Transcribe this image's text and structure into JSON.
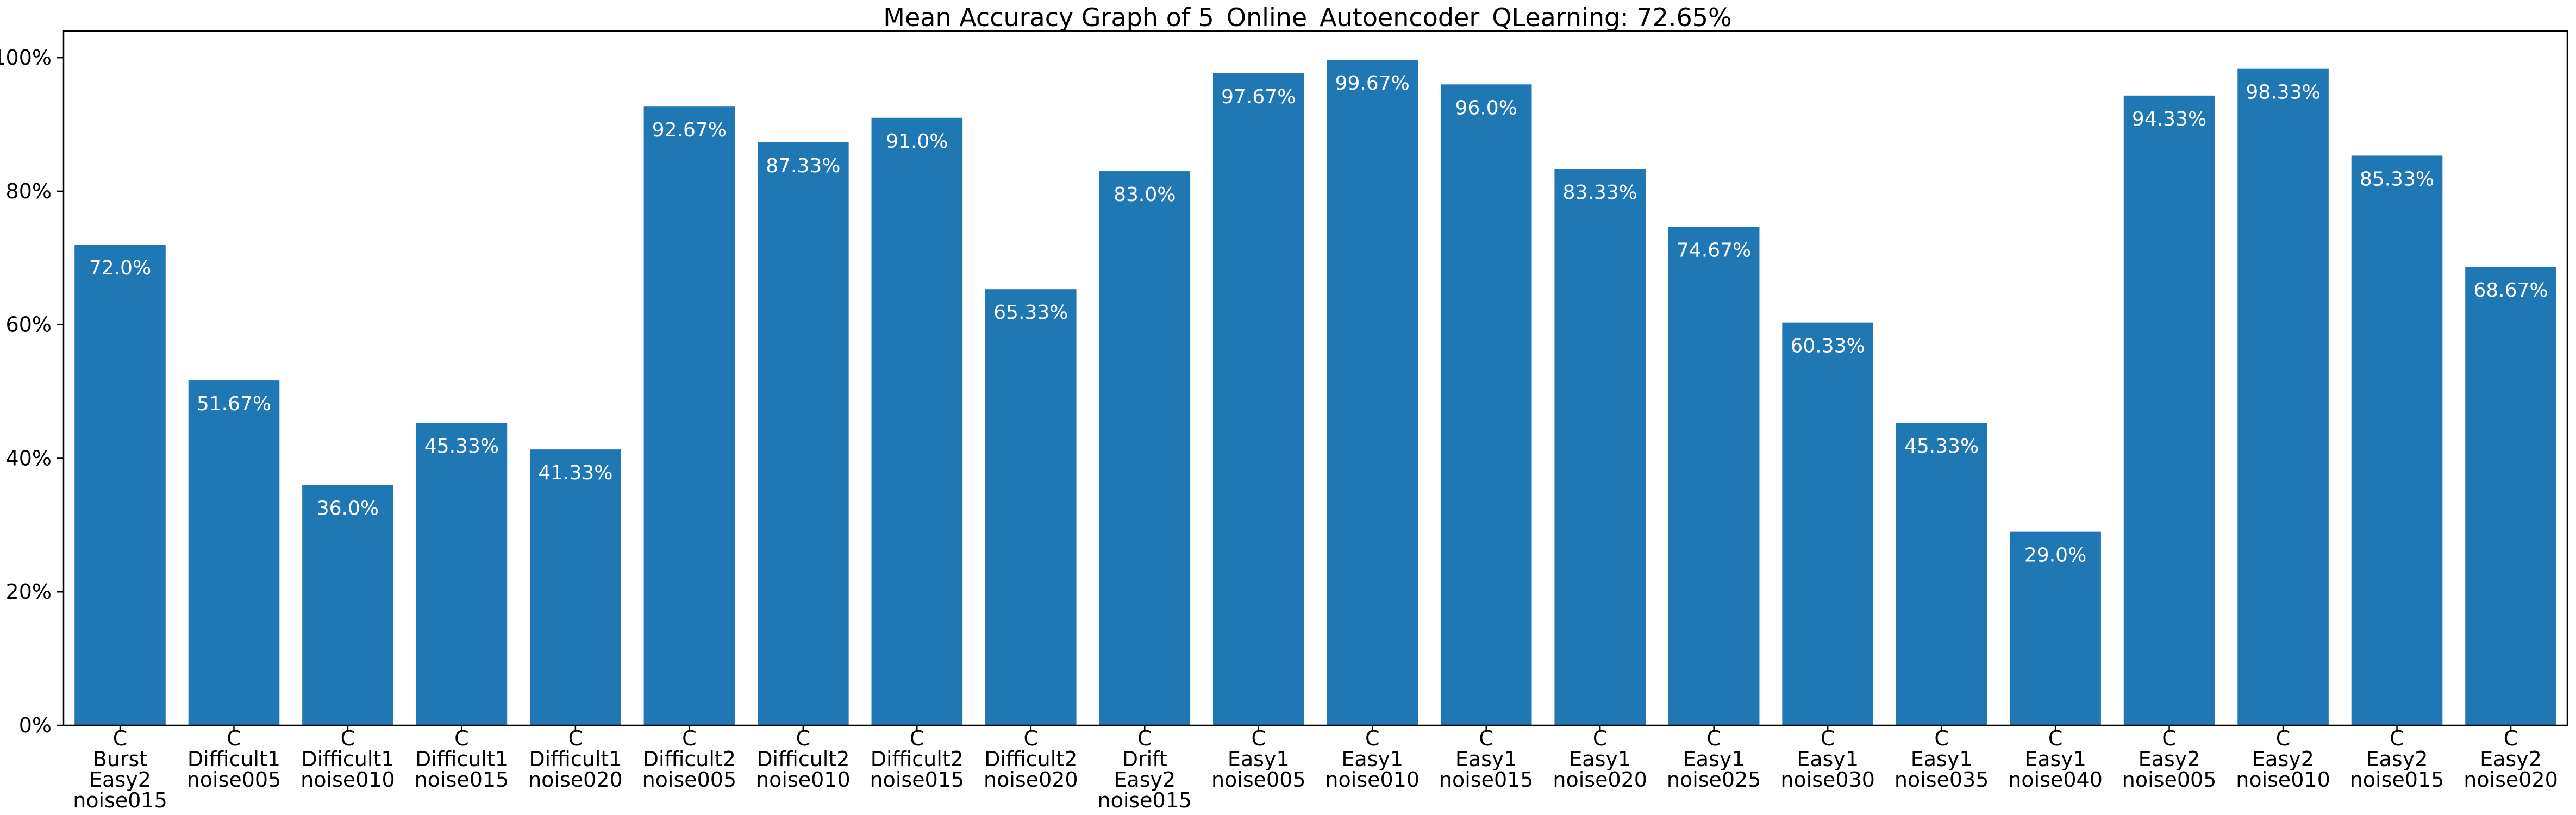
{
  "chart_data": {
    "type": "bar",
    "title": "Mean Accuracy Graph of 5_Online_Autoencoder_QLearning: 72.65%",
    "xlabel": "",
    "ylabel": "",
    "ylim": [
      0,
      104
    ],
    "y_ticks": [
      0,
      20,
      40,
      60,
      80,
      100
    ],
    "y_tick_labels": [
      "0%",
      "20%",
      "40%",
      "60%",
      "80%",
      "100%"
    ],
    "grid": false,
    "legend": "none",
    "bar_color": "#1f77b4",
    "label_color": "#ffffff",
    "categories": [
      [
        "C",
        "Burst",
        "Easy2",
        "noise015"
      ],
      [
        "C",
        "Difficult1",
        "noise005"
      ],
      [
        "C",
        "Difficult1",
        "noise010"
      ],
      [
        "C",
        "Difficult1",
        "noise015"
      ],
      [
        "C",
        "Difficult1",
        "noise020"
      ],
      [
        "C",
        "Difficult2",
        "noise005"
      ],
      [
        "C",
        "Difficult2",
        "noise010"
      ],
      [
        "C",
        "Difficult2",
        "noise015"
      ],
      [
        "C",
        "Difficult2",
        "noise020"
      ],
      [
        "C",
        "Drift",
        "Easy2",
        "noise015"
      ],
      [
        "C",
        "Easy1",
        "noise005"
      ],
      [
        "C",
        "Easy1",
        "noise010"
      ],
      [
        "C",
        "Easy1",
        "noise015"
      ],
      [
        "C",
        "Easy1",
        "noise020"
      ],
      [
        "C",
        "Easy1",
        "noise025"
      ],
      [
        "C",
        "Easy1",
        "noise030"
      ],
      [
        "C",
        "Easy1",
        "noise035"
      ],
      [
        "C",
        "Easy1",
        "noise040"
      ],
      [
        "C",
        "Easy2",
        "noise005"
      ],
      [
        "C",
        "Easy2",
        "noise010"
      ],
      [
        "C",
        "Easy2",
        "noise015"
      ],
      [
        "C",
        "Easy2",
        "noise020"
      ]
    ],
    "values": [
      72.0,
      51.67,
      36.0,
      45.33,
      41.33,
      92.67,
      87.33,
      91.0,
      65.33,
      83.0,
      97.67,
      99.67,
      96.0,
      83.33,
      74.67,
      60.33,
      45.33,
      29.0,
      94.33,
      98.33,
      85.33,
      68.67
    ],
    "data_labels": [
      "72.0%",
      "51.67%",
      "36.0%",
      "45.33%",
      "41.33%",
      "92.67%",
      "87.33%",
      "91.0%",
      "65.33%",
      "83.0%",
      "97.67%",
      "99.67%",
      "96.0%",
      "83.33%",
      "74.67%",
      "60.33%",
      "45.33%",
      "29.0%",
      "94.33%",
      "98.33%",
      "85.33%",
      "68.67%"
    ]
  }
}
